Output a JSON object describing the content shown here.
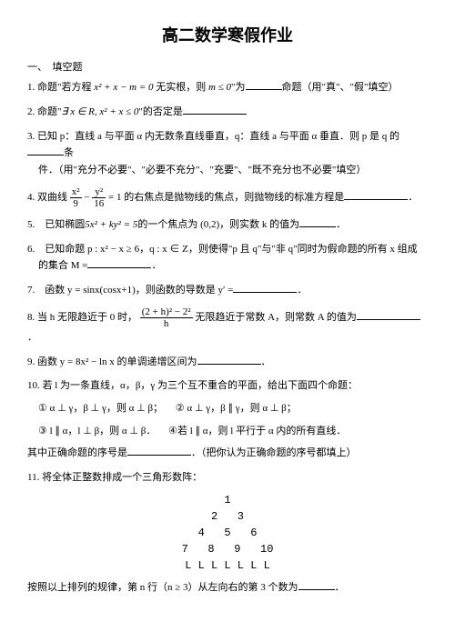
{
  "title": "高二数学寒假作业",
  "section1": "一、　填空题",
  "q1": {
    "a": "1. 命题\"若方程 ",
    "expr": "x² + x − m = 0",
    "b": " 无实根，则 ",
    "cond": "m ≤ 0",
    "c": "\"为",
    "d": "命题（用\"真\"、\"假\"填空）"
  },
  "q2": {
    "a": "2. 命题\"",
    "expr": "∃ x ∈ R, x² + x ≤ 0",
    "b": "\"的否定是"
  },
  "q3": {
    "a": "3. 已知 p：直线 a 与平面 α 内无数条直线垂直，q：直线 a 与平面 α 垂直．则 p 是 q 的",
    "b": "条",
    "c": "件．（用\"充分不必要\"、\"必要不充分\"、\"充要\"、\"既不充分也不必要\"填空）"
  },
  "q4": {
    "a": "4. 双曲线 ",
    "n1": "x²",
    "d1": "9",
    "n2": "y²",
    "d2": "16",
    "eq": " = 1",
    "b": " 的右焦点是抛物线的焦点，则抛物线的标准方程是",
    "c": "．"
  },
  "q5": {
    "a": "5.　已知椭圆",
    "expr": "5x² + ky² = 5",
    "b": "的一个焦点为 (0,2)，则实数 k 的值为",
    "c": "．"
  },
  "q6": {
    "a": "6.　已知命题 p : x² − x ≥ 6，q : x ∈ Z，则使得\"p 且 q\"与\"非 q\"同时为假命题的所有 x 组成",
    "b": "的集合 M =",
    "c": "．"
  },
  "q7": {
    "a": "7.　函数 y = sinx(cosx+1)，则函数的导数是 y′ =",
    "b": "．"
  },
  "q8": {
    "a": "8. 当 h 无限趋近于 0 时，",
    "num": "(2 + h)² − 2²",
    "den": "h",
    "b": " 无限趋近于常数 A，则常数 A 的值为",
    "c": "．"
  },
  "q9": {
    "a": "9. 函数 y = 8x² − ln x 的单调递增区间为",
    "b": "．"
  },
  "q10": {
    "a": "10. 若 l 为一条直线，α，β，γ 为三个互不重合的平面，给出下面四个命题：",
    "c1": "① α ⊥ γ，β ⊥ γ，则 α ⊥ β；",
    "c2": "② α ⊥ γ，β ∥ γ，则 α ⊥ β；",
    "c3": "③ l ∥ α，l ⊥ β，则 α ⊥ β．",
    "c4": "④若 l ∥ α，则 l 平行于 α 内的所有直线．",
    "e": "其中正确命题的序号是",
    "f": "．（把你认为正确命题的序号都填上）"
  },
  "q11": {
    "a": "11. 将全体正整数排成一个三角形数阵：",
    "r1": "1",
    "r2": "2   3",
    "r3": "4   5   6",
    "r4": "7   8   9   10",
    "r5": "L L L L L L L",
    "b": "按照以上排列的规律，第 n 行（n ≥ 3）从左向右的第 3 个数为",
    "c": "．"
  }
}
